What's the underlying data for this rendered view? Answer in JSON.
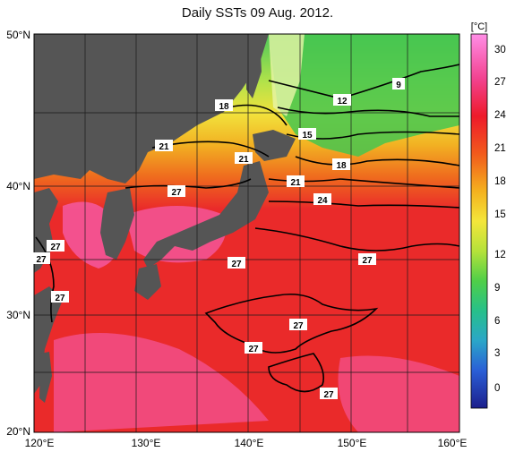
{
  "title": "Daily SSTs 09 Aug. 2012.",
  "colorbar": {
    "unit": "[°C]",
    "ticks": [
      "30",
      "27",
      "24",
      "21",
      "18",
      "15",
      "12",
      "9",
      "6",
      "3",
      "0"
    ],
    "colors": [
      "#ff6bd6",
      "#f21c2a",
      "#f4a21c",
      "#f3e23a",
      "#9adf3a",
      "#2fc65c",
      "#2fb7b8",
      "#2a78d8",
      "#2a2bc0",
      "#20218a"
    ]
  },
  "axes": {
    "lat_labels": [
      "50°N",
      "40°N",
      "30°N",
      "20°N"
    ],
    "lon_labels": [
      "120°E",
      "130°E",
      "140°E",
      "150°E",
      "160°E"
    ]
  },
  "contour_labels": [
    {
      "text": "9"
    },
    {
      "text": "12"
    },
    {
      "text": "15"
    },
    {
      "text": "18"
    },
    {
      "text": "18"
    },
    {
      "text": "21"
    },
    {
      "text": "21"
    },
    {
      "text": "21"
    },
    {
      "text": "24"
    },
    {
      "text": "27"
    },
    {
      "text": "27"
    },
    {
      "text": "27"
    },
    {
      "text": "27"
    },
    {
      "text": "27"
    },
    {
      "text": "27"
    },
    {
      "text": "27"
    },
    {
      "text": "27"
    },
    {
      "text": "27"
    }
  ]
}
